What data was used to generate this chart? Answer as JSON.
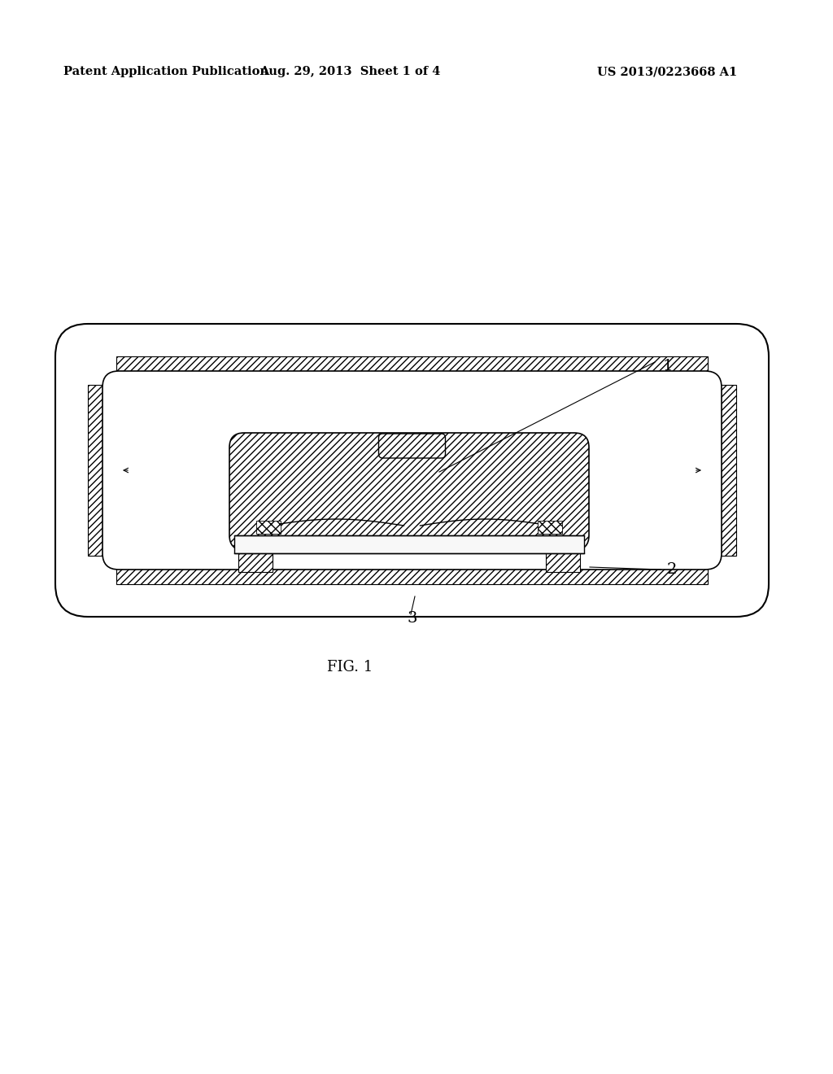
{
  "background_color": "#ffffff",
  "header_left": "Patent Application Publication",
  "header_mid": "Aug. 29, 2013  Sheet 1 of 4",
  "header_right": "US 2013/0223668 A1",
  "fig_label": "FIG. 1",
  "label1": "1",
  "label2": "2",
  "label3": "3",
  "line_color": "#000000"
}
